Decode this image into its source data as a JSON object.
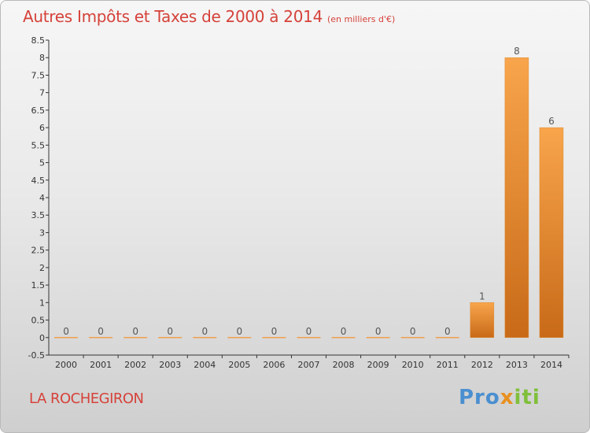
{
  "title": "Autres Impôts et Taxes de 2000 à 2014",
  "subtitle": "(en milliers d'€)",
  "town": "LA ROCHEGIRON",
  "logo": {
    "p1": "Pro",
    "p2": "x",
    "p3": "iti"
  },
  "colors": {
    "title": "#d5423a",
    "bar_light": "#f8a54c",
    "bar_dark": "#c86a18",
    "axis": "#333333"
  },
  "chart_data": {
    "type": "bar",
    "categories": [
      "2000",
      "2001",
      "2002",
      "2003",
      "2004",
      "2005",
      "2006",
      "2007",
      "2008",
      "2009",
      "2010",
      "2011",
      "2012",
      "2013",
      "2014"
    ],
    "values": [
      0,
      0,
      0,
      0,
      0,
      0,
      0,
      0,
      0,
      0,
      0,
      0,
      1,
      8,
      6
    ],
    "data_labels": [
      "0",
      "0",
      "0",
      "0",
      "0",
      "0",
      "0",
      "0",
      "0",
      "0",
      "0",
      "0",
      "1",
      "8",
      "6"
    ],
    "yticks": [
      -0.5,
      0,
      0.5,
      1,
      1.5,
      2,
      2.5,
      3,
      3.5,
      4,
      4.5,
      5,
      5.5,
      6,
      6.5,
      7,
      7.5,
      8,
      8.5
    ],
    "ylim": [
      -0.5,
      8.5
    ],
    "grid": false
  }
}
